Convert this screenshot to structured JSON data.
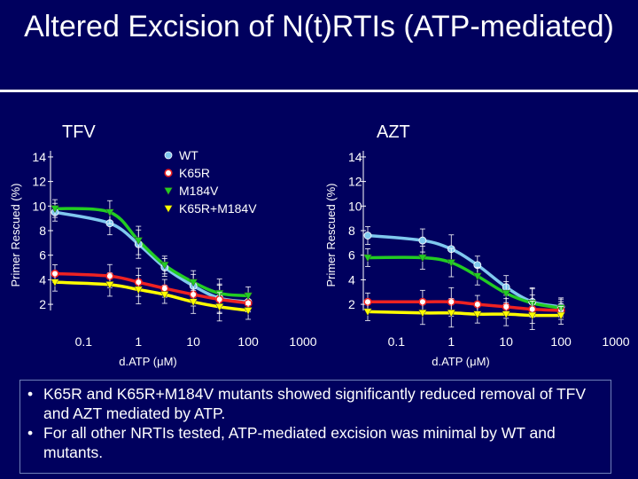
{
  "title": "Altered Excision of N(t)RTIs (ATP-mediated)",
  "bullets": [
    "K65R and K65R+M184V mutants showed significantly reduced removal of TFV and AZT mediated by ATP.",
    "For all other NRTIs tested, ATP-mediated excision was minimal by WT and mutants."
  ],
  "colors": {
    "background": "#00005e",
    "wt": "#7fc8ee",
    "k65r": "#ee2222",
    "m184v": "#22cc22",
    "k65r_m184v": "#ffff00"
  },
  "legend": {
    "position": "top-left-chart-area",
    "items": [
      {
        "label": "WT",
        "marker": "circle",
        "color": "#7fc8ee"
      },
      {
        "label": "K65R",
        "marker": "circle-open",
        "color": "#ee2222"
      },
      {
        "label": "M184V",
        "marker": "triangle-down",
        "color": "#22cc22"
      },
      {
        "label": "K65R+M184V",
        "marker": "triangle-down",
        "color": "#ffff00"
      }
    ]
  },
  "chart_data": [
    {
      "type": "line",
      "title": "TFV",
      "xlabel": "d.ATP (μM)",
      "ylabel": "Primer Rescued (%)",
      "xscale": "log",
      "xlim": [
        0.03,
        1000
      ],
      "ylim": [
        1.5,
        14.5
      ],
      "xticks": [
        "0.1",
        "1",
        "10",
        "100",
        "1000"
      ],
      "yticks": [
        "2",
        "4",
        "6",
        "8",
        "10",
        "12",
        "14"
      ],
      "grid": false,
      "series": [
        {
          "name": "WT",
          "x": [
            0.03,
            0.3,
            1,
            3,
            10,
            30,
            100
          ],
          "y": [
            9.5,
            8.6,
            6.9,
            5.0,
            3.5,
            2.5,
            2.2
          ]
        },
        {
          "name": "K65R",
          "x": [
            0.03,
            0.3,
            1,
            3,
            10,
            30,
            100
          ],
          "y": [
            4.5,
            4.3,
            3.8,
            3.3,
            2.8,
            2.4,
            2.1
          ]
        },
        {
          "name": "M184V",
          "x": [
            0.03,
            0.3,
            1,
            3,
            10,
            30,
            100
          ],
          "y": [
            9.8,
            9.5,
            7.2,
            5.2,
            3.8,
            2.9,
            2.7
          ]
        },
        {
          "name": "K65R+M184V",
          "x": [
            0.03,
            0.3,
            1,
            3,
            10,
            30,
            100
          ],
          "y": [
            3.8,
            3.6,
            3.2,
            2.8,
            2.2,
            1.8,
            1.5
          ]
        }
      ]
    },
    {
      "type": "line",
      "title": "AZT",
      "xlabel": "d.ATP (μM)",
      "ylabel": "Primer Rescued (%)",
      "xscale": "log",
      "xlim": [
        0.03,
        1000
      ],
      "ylim": [
        1.5,
        14.5
      ],
      "xticks": [
        "0.1",
        "1",
        "10",
        "100",
        "1000"
      ],
      "yticks": [
        "2",
        "4",
        "6",
        "8",
        "10",
        "12",
        "14"
      ],
      "grid": false,
      "series": [
        {
          "name": "WT",
          "x": [
            0.03,
            0.3,
            1,
            3,
            10,
            30,
            100
          ],
          "y": [
            7.6,
            7.2,
            6.5,
            5.2,
            3.4,
            2.2,
            1.8
          ]
        },
        {
          "name": "K65R",
          "x": [
            0.03,
            0.3,
            1,
            3,
            10,
            30,
            100
          ],
          "y": [
            2.2,
            2.2,
            2.2,
            2.0,
            1.8,
            1.6,
            1.5
          ]
        },
        {
          "name": "M184V",
          "x": [
            0.03,
            0.3,
            1,
            3,
            10,
            30,
            100
          ],
          "y": [
            5.8,
            5.8,
            5.4,
            4.3,
            2.9,
            2.1,
            1.7
          ]
        },
        {
          "name": "K65R+M184V",
          "x": [
            0.03,
            0.3,
            1,
            3,
            10,
            30,
            100
          ],
          "y": [
            1.4,
            1.3,
            1.3,
            1.2,
            1.2,
            1.1,
            1.1
          ]
        }
      ]
    }
  ]
}
